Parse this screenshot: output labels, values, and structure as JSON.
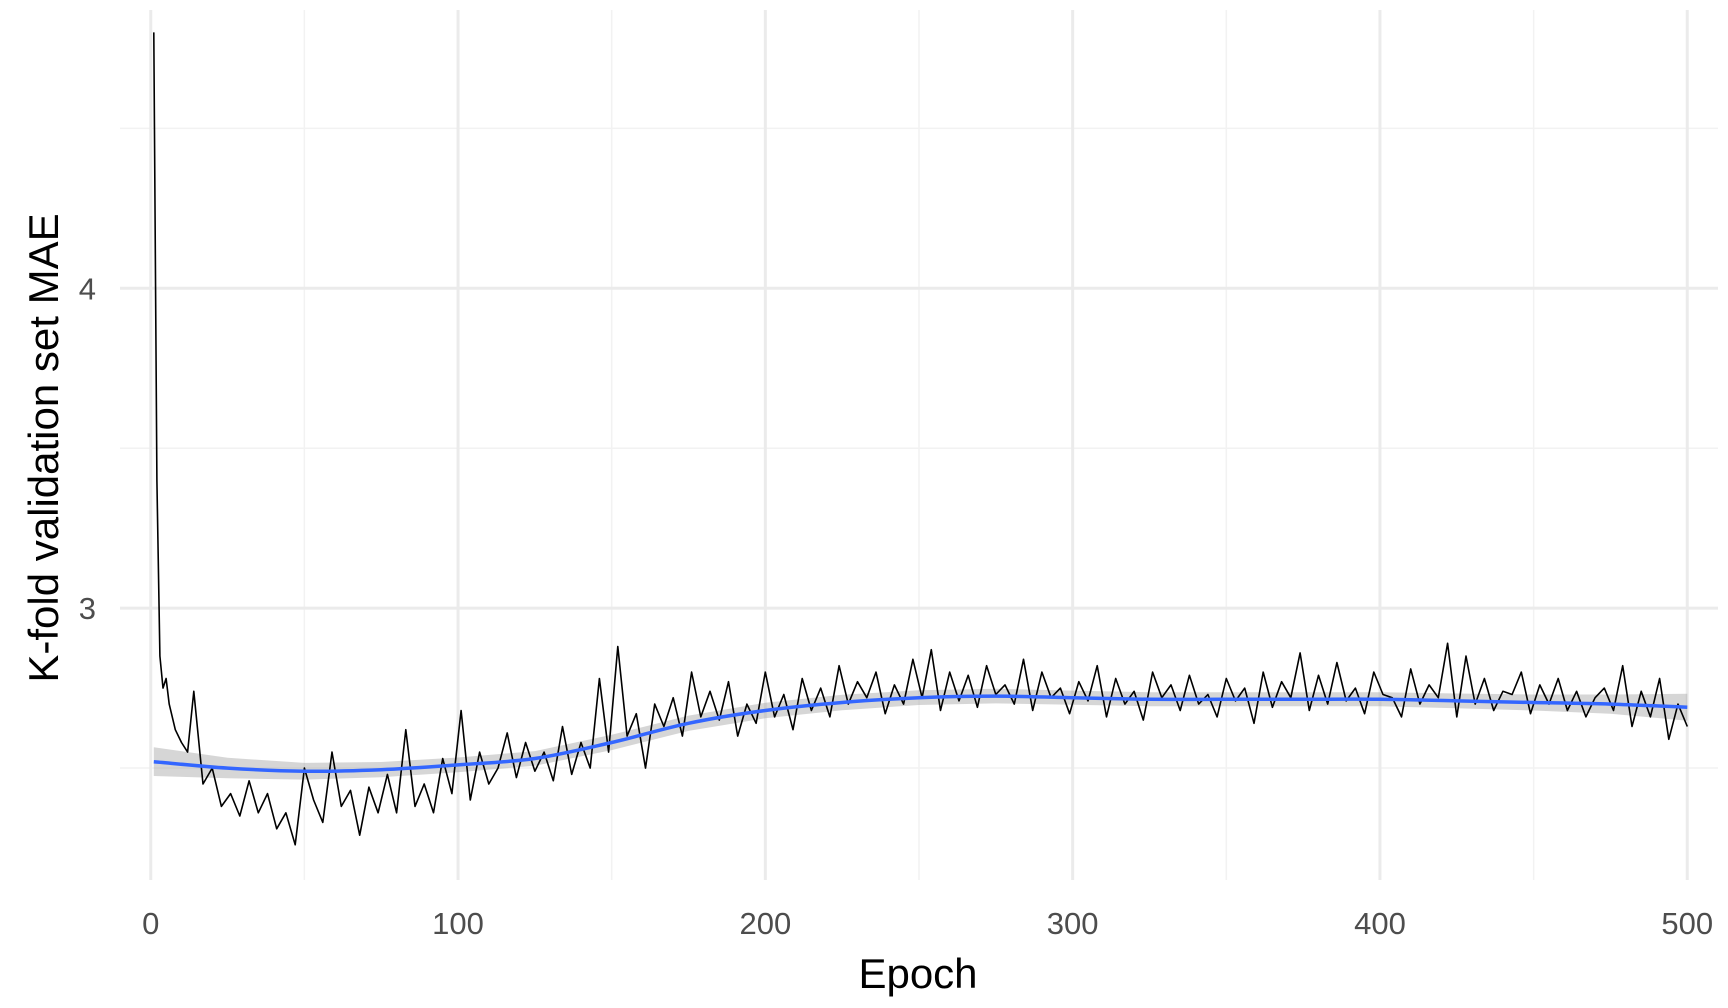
{
  "chart_data": {
    "type": "line",
    "title": "",
    "xlabel": "Epoch",
    "ylabel": "K-fold validation set MAE",
    "xlim": [
      -10,
      510
    ],
    "ylim": [
      2.15,
      4.87
    ],
    "x_major_ticks": [
      0,
      100,
      200,
      300,
      400,
      500
    ],
    "x_minor_ticks": [
      50,
      150,
      250,
      350,
      450
    ],
    "y_major_ticks": [
      3,
      4
    ],
    "y_minor_ticks": [
      2.5,
      3.5,
      4.5
    ],
    "x_tick_labels": [
      "0",
      "100",
      "200",
      "300",
      "400",
      "500"
    ],
    "y_tick_labels": [
      "3",
      "4"
    ],
    "grid": true,
    "legend": "none",
    "colors": {
      "raw_line": "#000000",
      "smooth_line": "#3366FF",
      "confidence_band": "#999999",
      "grid_major": "#ebebeb",
      "grid_minor": "#f2f2f2"
    },
    "series": [
      {
        "kind": "raw",
        "x": [
          1,
          2,
          3,
          4,
          5,
          6,
          8,
          10,
          12,
          14,
          17,
          20,
          23,
          26,
          29,
          32,
          35,
          38,
          41,
          44,
          47,
          50,
          53,
          56,
          59,
          62,
          65,
          68,
          71,
          74,
          77,
          80,
          83,
          86,
          89,
          92,
          95,
          98,
          101,
          104,
          107,
          110,
          113,
          116,
          119,
          122,
          125,
          128,
          131,
          134,
          137,
          140,
          143,
          146,
          149,
          152,
          155,
          158,
          161,
          164,
          167,
          170,
          173,
          176,
          179,
          182,
          185,
          188,
          191,
          194,
          197,
          200,
          203,
          206,
          209,
          212,
          215,
          218,
          221,
          224,
          227,
          230,
          233,
          236,
          239,
          242,
          245,
          248,
          251,
          254,
          257,
          260,
          263,
          266,
          269,
          272,
          275,
          278,
          281,
          284,
          287,
          290,
          293,
          296,
          299,
          302,
          305,
          308,
          311,
          314,
          317,
          320,
          323,
          326,
          329,
          332,
          335,
          338,
          341,
          344,
          347,
          350,
          353,
          356,
          359,
          362,
          365,
          368,
          371,
          374,
          377,
          380,
          383,
          386,
          389,
          392,
          395,
          398,
          401,
          404,
          407,
          410,
          413,
          416,
          419,
          422,
          425,
          428,
          431,
          434,
          437,
          440,
          443,
          446,
          449,
          452,
          455,
          458,
          461,
          464,
          467,
          470,
          473,
          476,
          479,
          482,
          485,
          488,
          491,
          494,
          497,
          500
        ],
        "y": [
          4.8,
          3.4,
          2.85,
          2.75,
          2.78,
          2.7,
          2.62,
          2.58,
          2.55,
          2.74,
          2.45,
          2.5,
          2.38,
          2.42,
          2.35,
          2.46,
          2.36,
          2.42,
          2.31,
          2.36,
          2.26,
          2.5,
          2.4,
          2.33,
          2.55,
          2.38,
          2.43,
          2.29,
          2.44,
          2.36,
          2.48,
          2.36,
          2.62,
          2.38,
          2.45,
          2.36,
          2.53,
          2.42,
          2.68,
          2.4,
          2.55,
          2.45,
          2.5,
          2.61,
          2.47,
          2.58,
          2.49,
          2.55,
          2.46,
          2.63,
          2.48,
          2.58,
          2.5,
          2.78,
          2.55,
          2.88,
          2.6,
          2.67,
          2.5,
          2.7,
          2.63,
          2.72,
          2.6,
          2.8,
          2.66,
          2.74,
          2.65,
          2.77,
          2.6,
          2.7,
          2.64,
          2.8,
          2.66,
          2.73,
          2.62,
          2.78,
          2.68,
          2.75,
          2.66,
          2.82,
          2.7,
          2.77,
          2.72,
          2.8,
          2.67,
          2.76,
          2.7,
          2.84,
          2.72,
          2.87,
          2.68,
          2.8,
          2.71,
          2.79,
          2.69,
          2.82,
          2.73,
          2.76,
          2.7,
          2.84,
          2.68,
          2.8,
          2.72,
          2.75,
          2.67,
          2.77,
          2.71,
          2.82,
          2.66,
          2.78,
          2.7,
          2.74,
          2.65,
          2.8,
          2.72,
          2.76,
          2.68,
          2.79,
          2.7,
          2.73,
          2.66,
          2.78,
          2.71,
          2.75,
          2.64,
          2.8,
          2.69,
          2.77,
          2.72,
          2.86,
          2.68,
          2.79,
          2.7,
          2.83,
          2.71,
          2.75,
          2.67,
          2.8,
          2.73,
          2.72,
          2.66,
          2.81,
          2.7,
          2.76,
          2.72,
          2.89,
          2.66,
          2.85,
          2.7,
          2.78,
          2.68,
          2.74,
          2.73,
          2.8,
          2.67,
          2.76,
          2.7,
          2.78,
          2.68,
          2.74,
          2.66,
          2.72,
          2.75,
          2.68,
          2.82,
          2.63,
          2.74,
          2.66,
          2.78,
          2.59,
          2.7,
          2.63
        ]
      },
      {
        "kind": "smooth",
        "x": [
          1,
          25,
          50,
          75,
          100,
          125,
          150,
          175,
          200,
          225,
          250,
          275,
          300,
          325,
          350,
          375,
          400,
          425,
          450,
          475,
          500
        ],
        "y": [
          2.52,
          2.5,
          2.49,
          2.495,
          2.51,
          2.53,
          2.58,
          2.64,
          2.68,
          2.705,
          2.72,
          2.725,
          2.72,
          2.715,
          2.715,
          2.715,
          2.715,
          2.71,
          2.705,
          2.7,
          2.69
        ],
        "band_half_width": [
          0.045,
          0.032,
          0.026,
          0.024,
          0.023,
          0.023,
          0.024,
          0.024,
          0.024,
          0.024,
          0.023,
          0.023,
          0.022,
          0.022,
          0.022,
          0.022,
          0.022,
          0.023,
          0.025,
          0.03,
          0.042
        ]
      }
    ]
  }
}
